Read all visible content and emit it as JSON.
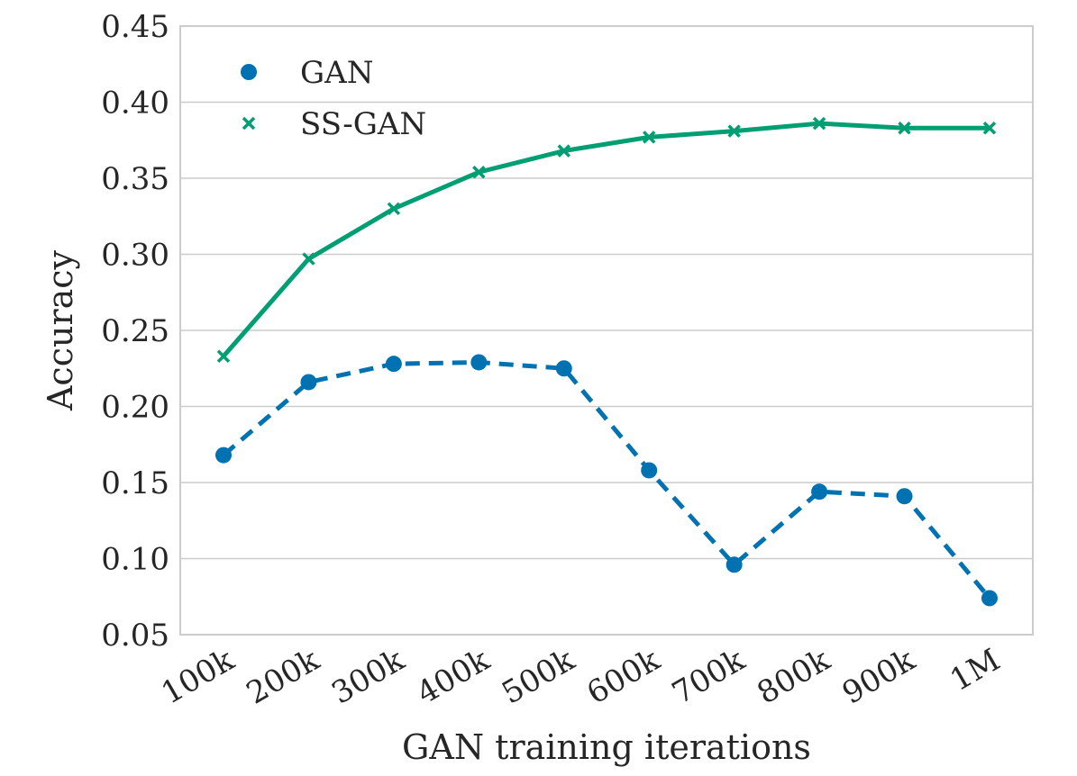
{
  "chart_data": {
    "type": "line",
    "xlabel": "GAN training iterations",
    "ylabel": "Accuracy",
    "categories": [
      "100k",
      "200k",
      "300k",
      "400k",
      "500k",
      "600k",
      "700k",
      "800k",
      "900k",
      "1M"
    ],
    "ylim": [
      0.05,
      0.45
    ],
    "yticks": [
      "0.05",
      "0.10",
      "0.15",
      "0.20",
      "0.25",
      "0.30",
      "0.35",
      "0.40",
      "0.45"
    ],
    "grid": true,
    "legend_position": "top-left",
    "series": [
      {
        "name": "GAN",
        "color": "#0072b2",
        "marker": "circle",
        "linestyle": "dashed",
        "values": [
          0.168,
          0.216,
          0.228,
          0.229,
          0.225,
          0.158,
          0.096,
          0.144,
          0.141,
          0.074
        ]
      },
      {
        "name": "SS-GAN",
        "color": "#009e73",
        "marker": "x",
        "linestyle": "solid",
        "values": [
          0.233,
          0.297,
          0.33,
          0.354,
          0.368,
          0.377,
          0.381,
          0.386,
          0.383,
          0.383
        ]
      }
    ]
  }
}
